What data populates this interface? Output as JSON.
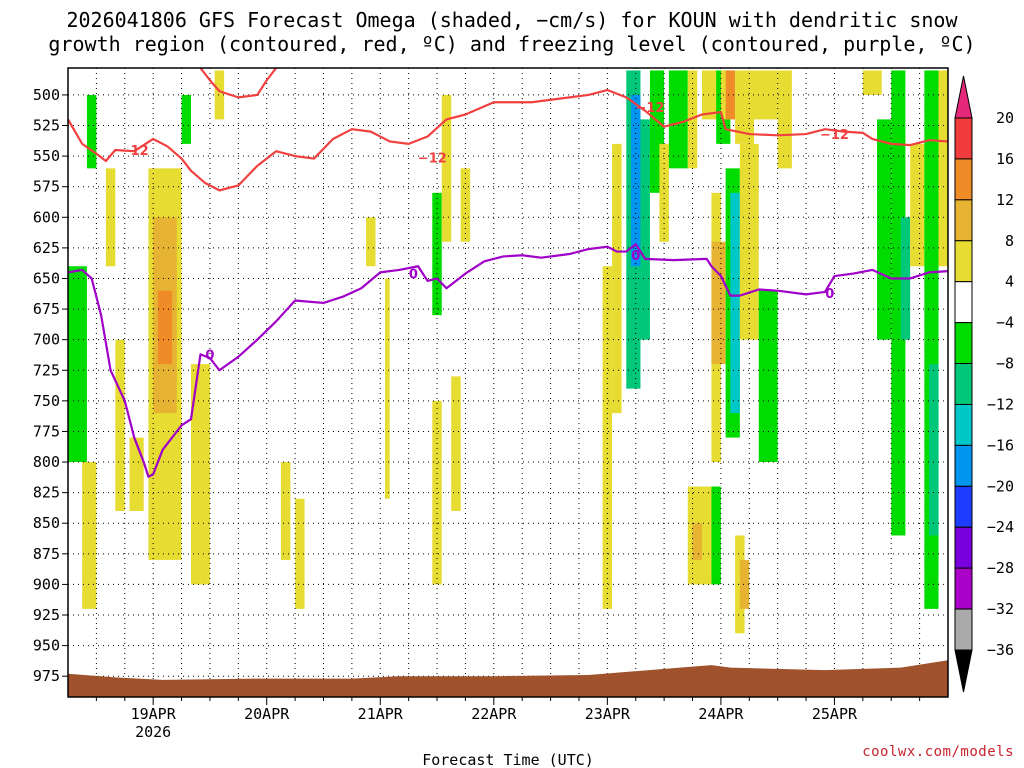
{
  "title_line1": "2026041806 GFS Forecast Omega (shaded, −cm/s) for KOUN with dendritic snow",
  "title_line2": "growth region (contoured, red, ºC) and freezing level (contoured, purple, ºC)",
  "watermark": "coolwx.com/models",
  "chart_data": {
    "type": "heatmap",
    "title": "2026041806 GFS Forecast Omega (shaded, −cm/s) for KOUN",
    "xlabel": "Forecast Time (UTC)",
    "ylabel": "",
    "x_range_hours": [
      0,
      186
    ],
    "y_range_hpa": [
      478,
      992
    ],
    "y_ticks": [
      500,
      525,
      550,
      575,
      600,
      625,
      650,
      675,
      700,
      725,
      750,
      775,
      800,
      825,
      850,
      875,
      900,
      925,
      950,
      975
    ],
    "x_ticks": [
      {
        "label": "19APR",
        "sub": "2026",
        "hour": 18
      },
      {
        "label": "20APR",
        "sub": "",
        "hour": 42
      },
      {
        "label": "21APR",
        "sub": "",
        "hour": 66
      },
      {
        "label": "22APR",
        "sub": "",
        "hour": 90
      },
      {
        "label": "23APR",
        "sub": "",
        "hour": 114
      },
      {
        "label": "24APR",
        "sub": "",
        "hour": 138
      },
      {
        "label": "25APR",
        "sub": "",
        "hour": 162
      }
    ],
    "colorbar": {
      "labels": [
        "20",
        "16",
        "12",
        "8",
        "4",
        "−4",
        "−8",
        "−12",
        "−16",
        "−20",
        "−24",
        "−28",
        "−32",
        "−36"
      ],
      "bins": [
        {
          "lo": 16,
          "hi": 20,
          "color": "#f03c3c"
        },
        {
          "lo": 12,
          "hi": 16,
          "color": "#f08c28"
        },
        {
          "lo": 8,
          "hi": 12,
          "color": "#e6b432"
        },
        {
          "lo": 4,
          "hi": 8,
          "color": "#e6dc32"
        },
        {
          "lo": -4,
          "hi": 4,
          "color": "#ffffff"
        },
        {
          "lo": -8,
          "hi": -4,
          "color": "#00dc00"
        },
        {
          "lo": -12,
          "hi": -8,
          "color": "#00c878"
        },
        {
          "lo": -16,
          "hi": -12,
          "color": "#00c8c8"
        },
        {
          "lo": -20,
          "hi": -16,
          "color": "#0096f0"
        },
        {
          "lo": -24,
          "hi": -20,
          "color": "#1e3cff"
        },
        {
          "lo": -28,
          "hi": -24,
          "color": "#7800dc"
        },
        {
          "lo": -32,
          "hi": -28,
          "color": "#aa00c8"
        },
        {
          "lo": -36,
          "hi": -32,
          "color": "#aaaaaa"
        }
      ],
      "top_arrow_color": "#e6287a",
      "bottom_arrow_color": "#000000"
    },
    "ground_color": "#a0522d",
    "omega_cells": [
      {
        "t0": 0,
        "t1": 4,
        "p0": 640,
        "p1": 800,
        "v": -6
      },
      {
        "t0": 4,
        "t1": 6,
        "p0": 500,
        "p1": 560,
        "v": -6
      },
      {
        "t0": 3,
        "t1": 6,
        "p0": 800,
        "p1": 920,
        "v": 6
      },
      {
        "t0": 8,
        "t1": 10,
        "p0": 560,
        "p1": 640,
        "v": 6
      },
      {
        "t0": 10,
        "t1": 12,
        "p0": 700,
        "p1": 840,
        "v": 6
      },
      {
        "t0": 13,
        "t1": 16,
        "p0": 780,
        "p1": 840,
        "v": 6
      },
      {
        "t0": 17,
        "t1": 24,
        "p0": 560,
        "p1": 880,
        "v": 6
      },
      {
        "t0": 18,
        "t1": 23,
        "p0": 600,
        "p1": 760,
        "v": 10
      },
      {
        "t0": 19,
        "t1": 22,
        "p0": 660,
        "p1": 720,
        "v": 14
      },
      {
        "t0": 24,
        "t1": 26,
        "p0": 500,
        "p1": 540,
        "v": -6
      },
      {
        "t0": 26,
        "t1": 30,
        "p0": 720,
        "p1": 900,
        "v": 6
      },
      {
        "t0": 31,
        "t1": 33,
        "p0": 480,
        "p1": 520,
        "v": 6
      },
      {
        "t0": 45,
        "t1": 47,
        "p0": 800,
        "p1": 880,
        "v": 6
      },
      {
        "t0": 48,
        "t1": 50,
        "p0": 830,
        "p1": 920,
        "v": 6
      },
      {
        "t0": 63,
        "t1": 65,
        "p0": 600,
        "p1": 640,
        "v": 6
      },
      {
        "t0": 67,
        "t1": 68,
        "p0": 650,
        "p1": 830,
        "v": 6
      },
      {
        "t0": 77,
        "t1": 79,
        "p0": 580,
        "p1": 680,
        "v": -6
      },
      {
        "t0": 77,
        "t1": 79,
        "p0": 750,
        "p1": 900,
        "v": 6
      },
      {
        "t0": 79,
        "t1": 81,
        "p0": 500,
        "p1": 620,
        "v": 6
      },
      {
        "t0": 81,
        "t1": 83,
        "p0": 730,
        "p1": 840,
        "v": 6
      },
      {
        "t0": 83,
        "t1": 85,
        "p0": 560,
        "p1": 620,
        "v": 6
      },
      {
        "t0": 113,
        "t1": 115,
        "p0": 640,
        "p1": 920,
        "v": 6
      },
      {
        "t0": 115,
        "t1": 117,
        "p0": 540,
        "p1": 760,
        "v": 6
      },
      {
        "t0": 118,
        "t1": 121,
        "p0": 480,
        "p1": 740,
        "v": -10
      },
      {
        "t0": 119,
        "t1": 121,
        "p0": 500,
        "p1": 640,
        "v": -18
      },
      {
        "t0": 121,
        "t1": 123,
        "p0": 520,
        "p1": 700,
        "v": -10
      },
      {
        "t0": 123,
        "t1": 126,
        "p0": 480,
        "p1": 580,
        "v": -6
      },
      {
        "t0": 125,
        "t1": 127,
        "p0": 540,
        "p1": 620,
        "v": 6
      },
      {
        "t0": 127,
        "t1": 131,
        "p0": 480,
        "p1": 560,
        "v": -6
      },
      {
        "t0": 131,
        "t1": 133,
        "p0": 480,
        "p1": 560,
        "v": 6
      },
      {
        "t0": 134,
        "t1": 138,
        "p0": 480,
        "p1": 520,
        "v": 6
      },
      {
        "t0": 131,
        "t1": 136,
        "p0": 820,
        "p1": 900,
        "v": 6
      },
      {
        "t0": 132,
        "t1": 134,
        "p0": 850,
        "p1": 880,
        "v": 10
      },
      {
        "t0": 136,
        "t1": 138,
        "p0": 580,
        "p1": 800,
        "v": 6
      },
      {
        "t0": 136,
        "t1": 139,
        "p0": 620,
        "p1": 720,
        "v": 10
      },
      {
        "t0": 136,
        "t1": 138,
        "p0": 820,
        "p1": 900,
        "v": -6
      },
      {
        "t0": 137,
        "t1": 140,
        "p0": 480,
        "p1": 540,
        "v": -6
      },
      {
        "t0": 138,
        "t1": 140,
        "p0": 480,
        "p1": 520,
        "v": 6
      },
      {
        "t0": 139,
        "t1": 142,
        "p0": 560,
        "p1": 780,
        "v": -8
      },
      {
        "t0": 140,
        "t1": 142,
        "p0": 580,
        "p1": 760,
        "v": -16
      },
      {
        "t0": 139,
        "t1": 141,
        "p0": 480,
        "p1": 520,
        "v": 12
      },
      {
        "t0": 141,
        "t1": 145,
        "p0": 480,
        "p1": 540,
        "v": 6
      },
      {
        "t0": 142,
        "t1": 146,
        "p0": 540,
        "p1": 700,
        "v": 6
      },
      {
        "t0": 144,
        "t1": 150,
        "p0": 480,
        "p1": 520,
        "v": 6
      },
      {
        "t0": 141,
        "t1": 143,
        "p0": 860,
        "p1": 940,
        "v": 6
      },
      {
        "t0": 142,
        "t1": 144,
        "p0": 880,
        "p1": 920,
        "v": 10
      },
      {
        "t0": 146,
        "t1": 150,
        "p0": 660,
        "p1": 800,
        "v": -6
      },
      {
        "t0": 150,
        "t1": 153,
        "p0": 480,
        "p1": 560,
        "v": 6
      },
      {
        "t0": 168,
        "t1": 172,
        "p0": 480,
        "p1": 500,
        "v": 6
      },
      {
        "t0": 171,
        "t1": 174,
        "p0": 520,
        "p1": 700,
        "v": -6
      },
      {
        "t0": 174,
        "t1": 177,
        "p0": 480,
        "p1": 860,
        "v": -6
      },
      {
        "t0": 176,
        "t1": 178,
        "p0": 600,
        "p1": 700,
        "v": -10
      },
      {
        "t0": 178,
        "t1": 181,
        "p0": 540,
        "p1": 640,
        "v": 6
      },
      {
        "t0": 181,
        "t1": 184,
        "p0": 480,
        "p1": 920,
        "v": -6
      },
      {
        "t0": 182,
        "t1": 184,
        "p0": 720,
        "p1": 860,
        "v": -10
      },
      {
        "t0": 184,
        "t1": 186,
        "p0": 480,
        "p1": 640,
        "v": 6
      }
    ],
    "contours": [
      {
        "name": "minus12",
        "label": "−12",
        "color": "#f04040",
        "points": [
          [
            0,
            520
          ],
          [
            3,
            540
          ],
          [
            6,
            548
          ],
          [
            8,
            554
          ],
          [
            10,
            545
          ],
          [
            14,
            546
          ],
          [
            18,
            536
          ],
          [
            21,
            542
          ],
          [
            24,
            552
          ],
          [
            26,
            562
          ],
          [
            29,
            572
          ],
          [
            32,
            578
          ],
          [
            36,
            574
          ],
          [
            40,
            558
          ],
          [
            44,
            546
          ],
          [
            48,
            550
          ],
          [
            52,
            552
          ],
          [
            56,
            536
          ],
          [
            60,
            528
          ],
          [
            64,
            530
          ],
          [
            68,
            538
          ],
          [
            72,
            540
          ],
          [
            76,
            534
          ],
          [
            80,
            520
          ],
          [
            84,
            516
          ],
          [
            90,
            506
          ],
          [
            98,
            506
          ],
          [
            106,
            502
          ],
          [
            110,
            500
          ],
          [
            114,
            496
          ],
          [
            118,
            502
          ],
          [
            122,
            513
          ],
          [
            126,
            526
          ],
          [
            130,
            522
          ],
          [
            134,
            516
          ],
          [
            138,
            514
          ],
          [
            139,
            528
          ],
          [
            144,
            532
          ],
          [
            150,
            533
          ],
          [
            156,
            532
          ],
          [
            160,
            528
          ],
          [
            164,
            530
          ],
          [
            168,
            531
          ],
          [
            170,
            536
          ],
          [
            174,
            540
          ],
          [
            178,
            541
          ],
          [
            182,
            537
          ],
          [
            186,
            538
          ]
        ]
      },
      {
        "name": "minus12-upper",
        "label": "",
        "color": "#f04040",
        "points": [
          [
            28,
            478
          ],
          [
            30,
            488
          ],
          [
            32,
            497
          ],
          [
            36,
            502
          ],
          [
            40,
            500
          ],
          [
            42,
            488
          ],
          [
            44,
            478
          ]
        ]
      },
      {
        "name": "freezing",
        "label": "0",
        "color": "#a000c8",
        "points": [
          [
            0,
            645
          ],
          [
            3,
            643
          ],
          [
            5,
            650
          ],
          [
            7,
            680
          ],
          [
            9,
            725
          ],
          [
            12,
            750
          ],
          [
            14,
            780
          ],
          [
            16,
            800
          ],
          [
            17,
            812
          ],
          [
            18,
            810
          ],
          [
            20,
            790
          ],
          [
            22,
            780
          ],
          [
            24,
            770
          ],
          [
            26,
            765
          ],
          [
            28,
            712
          ],
          [
            30,
            715
          ],
          [
            32,
            725
          ],
          [
            36,
            714
          ],
          [
            40,
            700
          ],
          [
            44,
            685
          ],
          [
            48,
            668
          ],
          [
            54,
            670
          ],
          [
            58,
            665
          ],
          [
            62,
            658
          ],
          [
            66,
            645
          ],
          [
            70,
            643
          ],
          [
            74,
            640
          ],
          [
            76,
            652
          ],
          [
            78,
            650
          ],
          [
            80,
            658
          ],
          [
            84,
            646
          ],
          [
            88,
            636
          ],
          [
            92,
            632
          ],
          [
            96,
            631
          ],
          [
            100,
            633
          ],
          [
            106,
            630
          ],
          [
            110,
            626
          ],
          [
            114,
            624
          ],
          [
            116,
            628
          ],
          [
            118,
            628
          ],
          [
            120,
            622
          ],
          [
            122,
            634
          ],
          [
            128,
            635
          ],
          [
            135,
            634
          ],
          [
            136,
            640
          ],
          [
            138,
            648
          ],
          [
            140,
            664
          ],
          [
            142,
            664
          ],
          [
            146,
            659
          ],
          [
            150,
            660
          ],
          [
            156,
            663
          ],
          [
            160,
            661
          ],
          [
            162,
            648
          ],
          [
            166,
            646
          ],
          [
            170,
            643
          ],
          [
            174,
            650
          ],
          [
            178,
            650
          ],
          [
            182,
            645
          ],
          [
            186,
            644
          ]
        ]
      }
    ],
    "contour_labels": [
      {
        "contour": "minus12",
        "text": "−12",
        "hour": 14,
        "hpa": 545
      },
      {
        "contour": "minus12",
        "text": "−12",
        "hour": 77,
        "hpa": 551
      },
      {
        "contour": "minus12",
        "text": "−12",
        "hour": 123,
        "hpa": 510
      },
      {
        "contour": "minus12",
        "text": "−12",
        "hour": 162,
        "hpa": 532
      },
      {
        "contour": "freezing",
        "text": "0",
        "hour": 30,
        "hpa": 712
      },
      {
        "contour": "freezing",
        "text": "0",
        "hour": 73,
        "hpa": 646
      },
      {
        "contour": "freezing",
        "text": "0",
        "hour": 120,
        "hpa": 631
      },
      {
        "contour": "freezing",
        "text": "0",
        "hour": 161,
        "hpa": 662
      }
    ],
    "ground": [
      [
        0,
        973
      ],
      [
        10,
        976
      ],
      [
        20,
        978
      ],
      [
        40,
        977
      ],
      [
        60,
        977
      ],
      [
        70,
        975
      ],
      [
        90,
        975
      ],
      [
        110,
        974
      ],
      [
        126,
        969
      ],
      [
        136,
        966
      ],
      [
        140,
        968
      ],
      [
        160,
        970
      ],
      [
        176,
        968
      ],
      [
        186,
        962
      ]
    ]
  }
}
